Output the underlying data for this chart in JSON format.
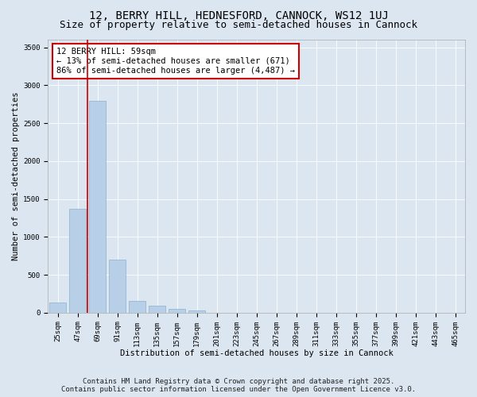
{
  "title_line1": "12, BERRY HILL, HEDNESFORD, CANNOCK, WS12 1UJ",
  "title_line2": "Size of property relative to semi-detached houses in Cannock",
  "xlabel": "Distribution of semi-detached houses by size in Cannock",
  "ylabel": "Number of semi-detached properties",
  "categories": [
    "25sqm",
    "47sqm",
    "69sqm",
    "91sqm",
    "113sqm",
    "135sqm",
    "157sqm",
    "179sqm",
    "201sqm",
    "223sqm",
    "245sqm",
    "267sqm",
    "289sqm",
    "311sqm",
    "333sqm",
    "355sqm",
    "377sqm",
    "399sqm",
    "421sqm",
    "443sqm",
    "465sqm"
  ],
  "values": [
    130,
    1370,
    2790,
    700,
    155,
    95,
    55,
    35,
    0,
    0,
    0,
    0,
    0,
    0,
    0,
    0,
    0,
    0,
    0,
    0,
    0
  ],
  "bar_color": "#b8cfe8",
  "bar_edge_color": "#8aafd0",
  "vline_color": "#cc0000",
  "annotation_text": "12 BERRY HILL: 59sqm\n← 13% of semi-detached houses are smaller (671)\n86% of semi-detached houses are larger (4,487) →",
  "annotation_box_color": "#ffffff",
  "annotation_edge_color": "#cc0000",
  "ylim": [
    0,
    3600
  ],
  "yticks": [
    0,
    500,
    1000,
    1500,
    2000,
    2500,
    3000,
    3500
  ],
  "background_color": "#dce6f0",
  "plot_bg_color": "#dce6f0",
  "footer_line1": "Contains HM Land Registry data © Crown copyright and database right 2025.",
  "footer_line2": "Contains public sector information licensed under the Open Government Licence v3.0.",
  "title_fontsize": 10,
  "subtitle_fontsize": 9,
  "axis_label_fontsize": 7.5,
  "tick_fontsize": 6.5,
  "annotation_fontsize": 7.5,
  "footer_fontsize": 6.5,
  "grid_color": "#ffffff",
  "vline_x_data": 1.5
}
